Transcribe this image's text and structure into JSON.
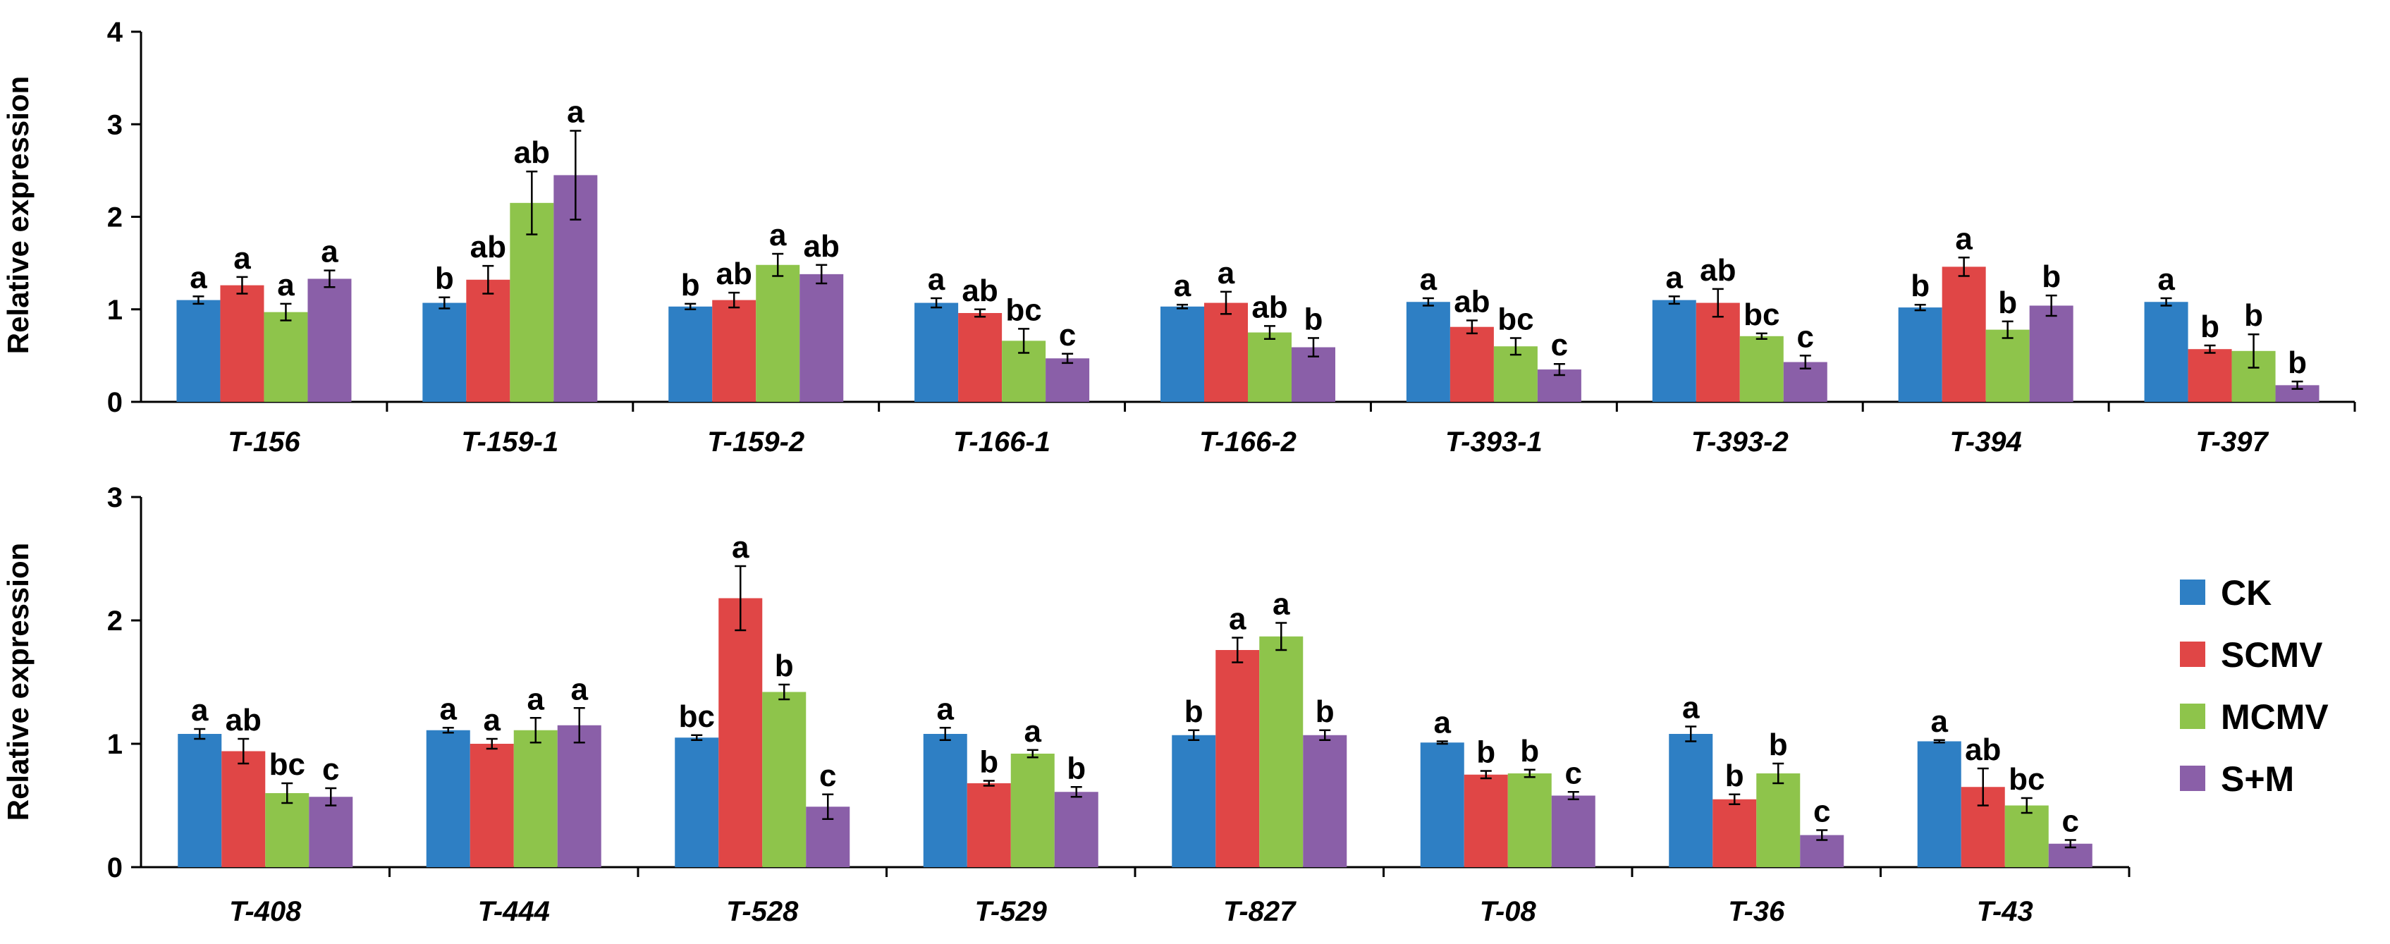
{
  "chart_data": [
    {
      "type": "bar",
      "ylabel": "Relative expression",
      "ylim": [
        0,
        4
      ],
      "yticks": [
        "0",
        "1",
        "2",
        "3",
        "4"
      ],
      "categories": [
        "T-156",
        "T-159-1",
        "T-159-2",
        "T-166-1",
        "T-166-2",
        "T-393-1",
        "T-393-2",
        "T-394",
        "T-397"
      ],
      "series": [
        {
          "name": "CK",
          "values": [
            1.1,
            1.07,
            1.03,
            1.07,
            1.03,
            1.08,
            1.1,
            1.02,
            1.08
          ],
          "errors": [
            0.04,
            0.06,
            0.03,
            0.05,
            0.02,
            0.04,
            0.04,
            0.03,
            0.04
          ],
          "sig": [
            "a",
            "b",
            "b",
            "a",
            "a",
            "a",
            "a",
            "b",
            "a"
          ]
        },
        {
          "name": "SCMV",
          "values": [
            1.26,
            1.32,
            1.1,
            0.96,
            1.07,
            0.81,
            1.07,
            1.46,
            0.57
          ],
          "errors": [
            0.09,
            0.15,
            0.08,
            0.04,
            0.12,
            0.07,
            0.15,
            0.1,
            0.04
          ],
          "sig": [
            "a",
            "ab",
            "ab",
            "ab",
            "a",
            "ab",
            "ab",
            "a",
            "b"
          ]
        },
        {
          "name": "MCMV",
          "values": [
            0.97,
            2.15,
            1.48,
            0.66,
            0.75,
            0.6,
            0.71,
            0.78,
            0.55
          ],
          "errors": [
            0.09,
            0.34,
            0.12,
            0.13,
            0.07,
            0.09,
            0.03,
            0.09,
            0.18
          ],
          "sig": [
            "a",
            "ab",
            "a",
            "bc",
            "ab",
            "bc",
            "bc",
            "b",
            "b"
          ]
        },
        {
          "name": "S+M",
          "values": [
            1.33,
            2.45,
            1.38,
            0.47,
            0.59,
            0.35,
            0.43,
            1.04,
            0.18
          ],
          "errors": [
            0.09,
            0.48,
            0.1,
            0.05,
            0.1,
            0.06,
            0.07,
            0.11,
            0.04
          ],
          "sig": [
            "a",
            "a",
            "ab",
            "c",
            "b",
            "c",
            "c",
            "b",
            "b"
          ]
        }
      ]
    },
    {
      "type": "bar",
      "ylabel": "Relative expression",
      "ylim": [
        0,
        3
      ],
      "yticks": [
        "0",
        "1",
        "2",
        "3"
      ],
      "categories": [
        "T-408",
        "T-444",
        "T-528",
        "T-529",
        "T-827",
        "T-08",
        "T-36",
        "T-43"
      ],
      "series": [
        {
          "name": "CK",
          "values": [
            1.08,
            1.11,
            1.05,
            1.08,
            1.07,
            1.01,
            1.08,
            1.02
          ],
          "errors": [
            0.04,
            0.02,
            0.02,
            0.05,
            0.04,
            0.01,
            0.06,
            0.01
          ],
          "sig": [
            "a",
            "a",
            "bc",
            "a",
            "b",
            "a",
            "a",
            "a"
          ]
        },
        {
          "name": "SCMV",
          "values": [
            0.94,
            1.0,
            2.18,
            0.68,
            1.76,
            0.75,
            0.55,
            0.65
          ],
          "errors": [
            0.1,
            0.04,
            0.26,
            0.02,
            0.1,
            0.03,
            0.04,
            0.15
          ],
          "sig": [
            "ab",
            "a",
            "a",
            "b",
            "a",
            "b",
            "b",
            "ab"
          ]
        },
        {
          "name": "MCMV",
          "values": [
            0.6,
            1.11,
            1.42,
            0.92,
            1.87,
            0.76,
            0.76,
            0.5
          ],
          "errors": [
            0.08,
            0.1,
            0.06,
            0.03,
            0.11,
            0.03,
            0.08,
            0.06
          ],
          "sig": [
            "bc",
            "a",
            "b",
            "a",
            "a",
            "b",
            "b",
            "bc"
          ]
        },
        {
          "name": "S+M",
          "values": [
            0.57,
            1.15,
            0.49,
            0.61,
            1.07,
            0.58,
            0.26,
            0.19
          ],
          "errors": [
            0.07,
            0.14,
            0.1,
            0.04,
            0.04,
            0.03,
            0.04,
            0.03
          ],
          "sig": [
            "c",
            "a",
            "c",
            "b",
            "b",
            "c",
            "c",
            "c"
          ]
        }
      ]
    }
  ],
  "legend": {
    "placement": "right",
    "entries": [
      "CK",
      "SCMV",
      "MCMV",
      "S+M"
    ]
  },
  "colors": {
    "CK": "#2e7fc4",
    "SCMV": "#e04646",
    "MCMV": "#8ec44b",
    "S+M": "#8a5fa8"
  }
}
